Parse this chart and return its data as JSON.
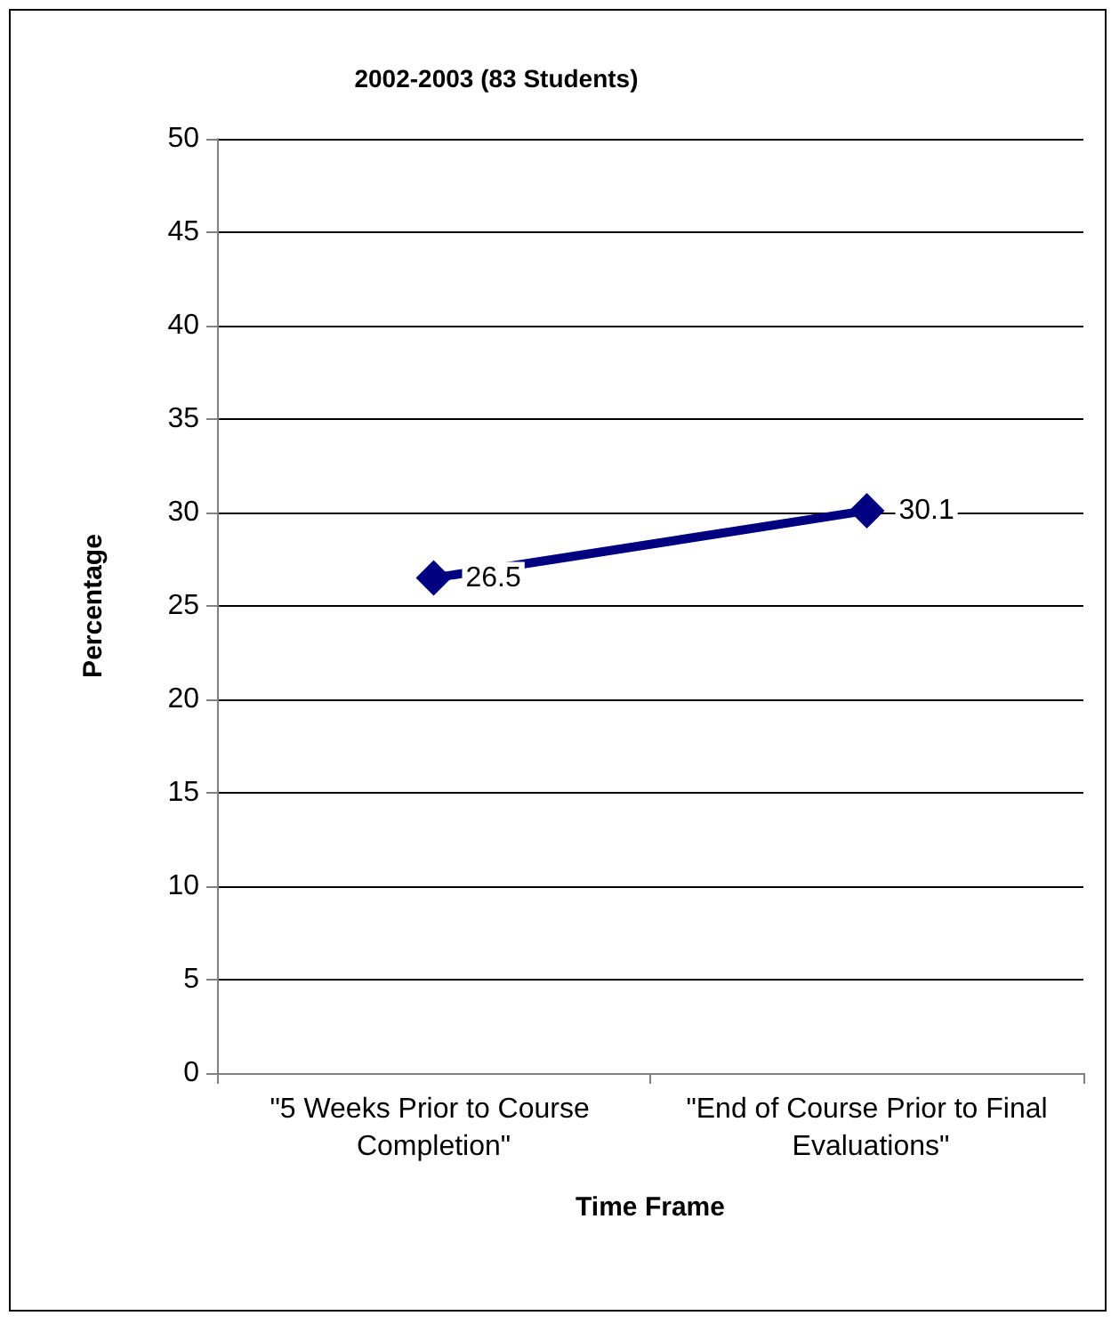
{
  "chart_data": {
    "type": "line",
    "title": "2002-2003 (83 Students)",
    "xlabel": "Time Frame",
    "ylabel": "Percentage",
    "categories": [
      "\"5 Weeks Prior to Course Completion\"",
      "\"End of Course Prior to Final Evaluations\""
    ],
    "series": [
      {
        "color": "#000080",
        "values": [
          26.5,
          30.1
        ]
      }
    ],
    "ylim": [
      0,
      50
    ],
    "yticks": [
      0,
      5,
      10,
      15,
      20,
      25,
      30,
      35,
      40,
      45,
      50
    ],
    "grid": "y",
    "marker": "diamond",
    "line_style": "solid",
    "data_labels": true
  }
}
